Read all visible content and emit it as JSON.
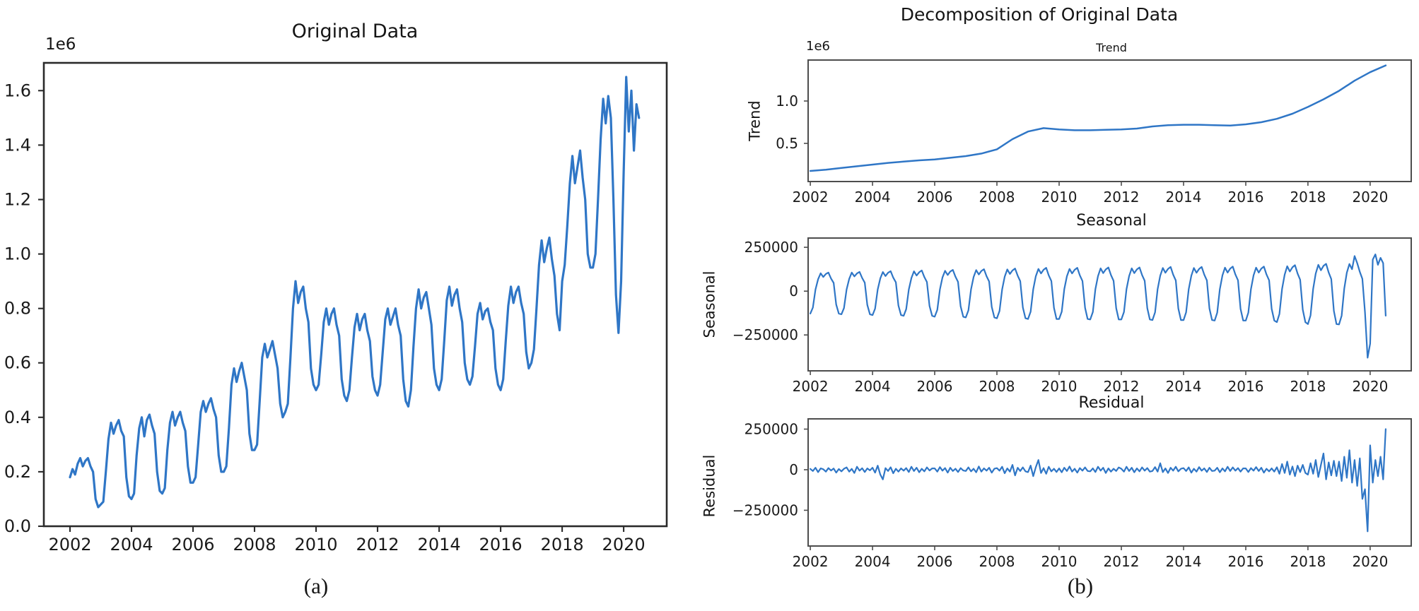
{
  "figure": {
    "suptitle": "Decomposition of Original Data",
    "caption_a": "(a)",
    "caption_b": "(b)",
    "line_color": "#2f76c6"
  },
  "chart_data": [
    {
      "id": "original",
      "type": "line",
      "title": "Original Data",
      "offset_label": "1e6",
      "xlabel": "",
      "ylabel": "",
      "color": "#2f76c6",
      "legend": "none",
      "grid": false,
      "xlim": [
        2001.15,
        2021.4
      ],
      "ylim": [
        0,
        1702000
      ],
      "value_scale": 1000000,
      "x_start": 2002,
      "x_step": 0.0833333,
      "xticks": [
        2002,
        2004,
        2006,
        2008,
        2010,
        2012,
        2014,
        2016,
        2018,
        2020
      ],
      "yticks": [
        {
          "v": 0,
          "label": "0.0"
        },
        {
          "v": 200000,
          "label": "0.2"
        },
        {
          "v": 400000,
          "label": "0.4"
        },
        {
          "v": 600000,
          "label": "0.6"
        },
        {
          "v": 800000,
          "label": "0.8"
        },
        {
          "v": 1000000,
          "label": "1.0"
        },
        {
          "v": 1200000,
          "label": "1.2"
        },
        {
          "v": 1400000,
          "label": "1.4"
        },
        {
          "v": 1600000,
          "label": "1.6"
        }
      ],
      "values": [
        0.18,
        0.21,
        0.19,
        0.23,
        0.25,
        0.22,
        0.24,
        0.25,
        0.22,
        0.2,
        0.1,
        0.07,
        0.08,
        0.09,
        0.2,
        0.32,
        0.38,
        0.34,
        0.37,
        0.39,
        0.35,
        0.33,
        0.18,
        0.11,
        0.1,
        0.12,
        0.26,
        0.36,
        0.4,
        0.33,
        0.39,
        0.41,
        0.37,
        0.34,
        0.2,
        0.13,
        0.12,
        0.14,
        0.28,
        0.38,
        0.42,
        0.37,
        0.4,
        0.42,
        0.38,
        0.35,
        0.22,
        0.16,
        0.16,
        0.18,
        0.3,
        0.42,
        0.46,
        0.42,
        0.45,
        0.47,
        0.43,
        0.4,
        0.26,
        0.2,
        0.2,
        0.22,
        0.36,
        0.52,
        0.58,
        0.53,
        0.57,
        0.6,
        0.55,
        0.5,
        0.34,
        0.28,
        0.28,
        0.3,
        0.46,
        0.62,
        0.67,
        0.62,
        0.65,
        0.68,
        0.63,
        0.58,
        0.45,
        0.4,
        0.42,
        0.45,
        0.62,
        0.8,
        0.9,
        0.82,
        0.86,
        0.88,
        0.8,
        0.75,
        0.58,
        0.52,
        0.5,
        0.52,
        0.63,
        0.75,
        0.8,
        0.74,
        0.78,
        0.8,
        0.74,
        0.7,
        0.54,
        0.48,
        0.46,
        0.5,
        0.62,
        0.73,
        0.78,
        0.72,
        0.76,
        0.78,
        0.72,
        0.68,
        0.55,
        0.5,
        0.48,
        0.52,
        0.64,
        0.76,
        0.8,
        0.74,
        0.77,
        0.8,
        0.74,
        0.7,
        0.54,
        0.46,
        0.44,
        0.5,
        0.66,
        0.8,
        0.87,
        0.8,
        0.84,
        0.86,
        0.8,
        0.74,
        0.58,
        0.52,
        0.5,
        0.54,
        0.68,
        0.83,
        0.88,
        0.81,
        0.85,
        0.87,
        0.8,
        0.75,
        0.6,
        0.54,
        0.52,
        0.55,
        0.66,
        0.78,
        0.82,
        0.76,
        0.79,
        0.8,
        0.75,
        0.72,
        0.58,
        0.52,
        0.5,
        0.54,
        0.68,
        0.81,
        0.88,
        0.82,
        0.86,
        0.88,
        0.82,
        0.78,
        0.64,
        0.58,
        0.6,
        0.65,
        0.8,
        0.96,
        1.05,
        0.97,
        1.02,
        1.06,
        0.98,
        0.92,
        0.78,
        0.72,
        0.9,
        0.96,
        1.1,
        1.26,
        1.36,
        1.26,
        1.32,
        1.38,
        1.28,
        1.2,
        1.0,
        0.95,
        0.95,
        1.0,
        1.2,
        1.42,
        1.57,
        1.48,
        1.58,
        1.5,
        1.2,
        0.85,
        0.71,
        0.9,
        1.3,
        1.65,
        1.45,
        1.6,
        1.38,
        1.55,
        1.5
      ]
    },
    {
      "id": "trend",
      "type": "line",
      "title": "Trend",
      "offset_label": "1e6",
      "xlabel": "",
      "ylabel": "Trend",
      "color": "#2f76c6",
      "legend": "none",
      "grid": false,
      "xlim": [
        2001.93,
        2021.32
      ],
      "ylim": [
        50000,
        1483000
      ],
      "value_scale": 1000000,
      "x": [
        2002.0,
        2002.5,
        2003.0,
        2003.5,
        2004.0,
        2004.5,
        2005.0,
        2005.5,
        2006.0,
        2006.5,
        2007.0,
        2007.5,
        2008.0,
        2008.5,
        2009.0,
        2009.5,
        2010.0,
        2010.5,
        2011.0,
        2011.5,
        2012.0,
        2012.5,
        2013.0,
        2013.5,
        2014.0,
        2014.5,
        2015.0,
        2015.5,
        2016.0,
        2016.5,
        2017.0,
        2017.5,
        2018.0,
        2018.5,
        2019.0,
        2019.5,
        2020.0,
        2020.5
      ],
      "xticks": [
        2002,
        2004,
        2006,
        2008,
        2010,
        2012,
        2014,
        2016,
        2018,
        2020
      ],
      "yticks": [
        {
          "v": 500000,
          "label": "0.5"
        },
        {
          "v": 1000000,
          "label": "1.0"
        }
      ],
      "values": [
        0.175,
        0.19,
        0.21,
        0.23,
        0.25,
        0.27,
        0.285,
        0.3,
        0.31,
        0.33,
        0.35,
        0.38,
        0.43,
        0.55,
        0.64,
        0.68,
        0.665,
        0.655,
        0.655,
        0.66,
        0.665,
        0.675,
        0.7,
        0.715,
        0.72,
        0.72,
        0.715,
        0.71,
        0.725,
        0.75,
        0.79,
        0.85,
        0.93,
        1.02,
        1.12,
        1.24,
        1.34,
        1.42
      ]
    },
    {
      "id": "seasonal",
      "type": "line",
      "title": "Seasonal",
      "offset_label": "",
      "xlabel": "",
      "ylabel": "Seasonal",
      "color": "#2f76c6",
      "legend": "none",
      "grid": false,
      "xlim": [
        2001.93,
        2021.32
      ],
      "ylim": [
        -455000,
        303000
      ],
      "value_scale": 1000,
      "x_start": 2002,
      "x_step": 0.0833333,
      "xticks": [
        2002,
        2004,
        2006,
        2008,
        2010,
        2012,
        2014,
        2016,
        2018,
        2020
      ],
      "yticks": [
        {
          "v": 250000,
          "label": "250000"
        },
        {
          "v": 0,
          "label": "0"
        },
        {
          "v": -250000,
          "label": "−250000"
        }
      ],
      "values": [
        -128,
        -94,
        9,
        68,
        102,
        81,
        98,
        106,
        72,
        47,
        -77,
        -128,
        -132,
        -97,
        9,
        70,
        106,
        84,
        101,
        110,
        75,
        48,
        -79,
        -132,
        -137,
        -100,
        9,
        73,
        109,
        86,
        105,
        114,
        77,
        50,
        -82,
        -137,
        -141,
        -103,
        9,
        75,
        113,
        89,
        108,
        118,
        80,
        52,
        -85,
        -141,
        -146,
        -107,
        10,
        78,
        116,
        92,
        112,
        121,
        82,
        53,
        -87,
        -146,
        -150,
        -110,
        10,
        80,
        120,
        95,
        115,
        125,
        85,
        55,
        -90,
        -150,
        -155,
        -113,
        10,
        82,
        124,
        98,
        118,
        129,
        88,
        57,
        -93,
        -155,
        -159,
        -117,
        11,
        85,
        127,
        101,
        122,
        133,
        90,
        58,
        -95,
        -159,
        -159,
        -117,
        11,
        85,
        127,
        101,
        122,
        133,
        90,
        58,
        -95,
        -159,
        -162,
        -119,
        11,
        86,
        130,
        103,
        124,
        135,
        92,
        59,
        -97,
        -162,
        -162,
        -119,
        11,
        86,
        130,
        103,
        124,
        135,
        92,
        59,
        -97,
        -162,
        -165,
        -121,
        11,
        88,
        132,
        105,
        127,
        138,
        94,
        61,
        -99,
        -165,
        -165,
        -121,
        11,
        88,
        132,
        105,
        127,
        138,
        94,
        61,
        -99,
        -165,
        -168,
        -123,
        11,
        90,
        134,
        106,
        129,
        140,
        95,
        62,
        -101,
        -168,
        -168,
        -123,
        11,
        90,
        134,
        106,
        129,
        140,
        95,
        62,
        -101,
        -168,
        -177,
        -130,
        12,
        94,
        142,
        112,
        136,
        148,
        100,
        65,
        -106,
        -177,
        -188,
        -138,
        13,
        100,
        150,
        119,
        144,
        156,
        106,
        69,
        -113,
        -188,
        -190,
        -140,
        15,
        105,
        155,
        125,
        200,
        160,
        110,
        70,
        -120,
        -380,
        -300,
        180,
        210,
        150,
        190,
        160,
        -140
      ]
    },
    {
      "id": "residual",
      "type": "line",
      "title": "Residual",
      "offset_label": "",
      "xlabel": "",
      "ylabel": "Residual",
      "color": "#2f76c6",
      "legend": "none",
      "grid": false,
      "xlim": [
        2001.93,
        2021.32
      ],
      "ylim": [
        -470000,
        313000
      ],
      "value_scale": 1000,
      "x_start": 2002,
      "x_step": 0.0833333,
      "xticks": [
        2002,
        2004,
        2006,
        2008,
        2010,
        2012,
        2014,
        2016,
        2018,
        2020
      ],
      "yticks": [
        {
          "v": 250000,
          "label": "250000"
        },
        {
          "v": 0,
          "label": "0"
        },
        {
          "v": -250000,
          "label": "−250000"
        }
      ],
      "values": [
        5,
        -8,
        12,
        -15,
        8,
        3,
        -12,
        10,
        -5,
        7,
        -18,
        4,
        -10,
        6,
        14,
        -12,
        5,
        -20,
        18,
        -6,
        9,
        -14,
        8,
        -4,
        12,
        -18,
        25,
        -30,
        -60,
        10,
        -8,
        15,
        -22,
        6,
        -12,
        8,
        -6,
        10,
        -14,
        18,
        -8,
        12,
        -16,
        6,
        -10,
        14,
        -5,
        8,
        8,
        -12,
        16,
        -6,
        10,
        -18,
        12,
        -8,
        6,
        -14,
        10,
        -5,
        -8,
        14,
        -10,
        6,
        -16,
        20,
        -12,
        8,
        -6,
        12,
        -18,
        6,
        10,
        -6,
        18,
        -22,
        8,
        -12,
        30,
        -35,
        12,
        -8,
        14,
        -10,
        -15,
        25,
        -40,
        15,
        60,
        -20,
        10,
        -25,
        18,
        -10,
        6,
        -14,
        8,
        -16,
        12,
        -8,
        20,
        -12,
        6,
        -18,
        10,
        -6,
        14,
        -8,
        -10,
        8,
        -14,
        18,
        -6,
        12,
        -20,
        8,
        -12,
        6,
        -8,
        14,
        6,
        -12,
        18,
        -8,
        12,
        -16,
        8,
        -10,
        14,
        -6,
        10,
        -12,
        -8,
        16,
        -12,
        40,
        -15,
        8,
        -20,
        12,
        -6,
        18,
        -10,
        6,
        10,
        -8,
        14,
        -18,
        6,
        -12,
        16,
        -6,
        8,
        -14,
        12,
        -8,
        -6,
        12,
        -16,
        8,
        -10,
        18,
        -8,
        14,
        -6,
        10,
        -12,
        8,
        8,
        -14,
        10,
        -6,
        16,
        -8,
        12,
        -18,
        6,
        -10,
        8,
        -12,
        15,
        -25,
        35,
        -20,
        50,
        -30,
        20,
        -40,
        25,
        -15,
        30,
        -20,
        -30,
        40,
        -25,
        60,
        -45,
        30,
        100,
        -60,
        45,
        -35,
        55,
        -40,
        50,
        -70,
        80,
        -50,
        120,
        -80,
        60,
        -100,
        70,
        -180,
        -120,
        -380,
        150,
        -80,
        60,
        -40,
        80,
        -60,
        250
      ]
    }
  ]
}
